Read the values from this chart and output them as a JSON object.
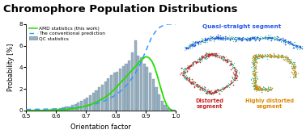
{
  "title": "Chromophore Population Distributions",
  "title_fontsize": 9.5,
  "title_fontweight": "bold",
  "xlabel": "Orientation factor",
  "ylabel": "Probability [%]",
  "xlim": [
    0.5,
    1.0
  ],
  "ylim": [
    0.0,
    8.0
  ],
  "yticks": [
    0.0,
    2.0,
    4.0,
    6.0,
    8.0
  ],
  "xticks": [
    0.5,
    0.6,
    0.7,
    0.8,
    0.9,
    1.0
  ],
  "bar_color": "#9ab0c0",
  "bar_edge_color": "#7090a0",
  "amd_color": "#22dd00",
  "conv_color": "#3399ff",
  "quasi_straight_color": "#2255ee",
  "distorted_color": "#cc2222",
  "highly_distorted_color": "#dd8800",
  "polymer_base_color": "#44bb99",
  "quasi_straight_label": "Quasi-straight segment",
  "distorted_label": "Distorted\nsegment",
  "highly_distorted_label": "Highly distorted\nsegment",
  "legend_amd": "AMD statistics (this work)",
  "legend_conv": "The conventional prediction",
  "legend_qc": "QC statistics",
  "bar_centers": [
    0.505,
    0.515,
    0.525,
    0.535,
    0.545,
    0.555,
    0.565,
    0.575,
    0.585,
    0.595,
    0.605,
    0.615,
    0.625,
    0.635,
    0.645,
    0.655,
    0.665,
    0.675,
    0.685,
    0.695,
    0.705,
    0.715,
    0.725,
    0.735,
    0.745,
    0.755,
    0.765,
    0.775,
    0.785,
    0.795,
    0.805,
    0.815,
    0.825,
    0.835,
    0.845,
    0.855,
    0.865,
    0.875,
    0.885,
    0.895,
    0.905,
    0.915,
    0.925,
    0.935,
    0.945,
    0.955,
    0.965,
    0.975,
    0.985,
    0.995
  ],
  "bar_heights": [
    0.04,
    0.04,
    0.04,
    0.04,
    0.04,
    0.06,
    0.07,
    0.09,
    0.12,
    0.14,
    0.18,
    0.22,
    0.28,
    0.34,
    0.4,
    0.5,
    0.62,
    0.75,
    0.9,
    1.05,
    1.2,
    1.4,
    1.65,
    1.9,
    2.15,
    2.4,
    2.7,
    3.0,
    3.3,
    3.5,
    3.6,
    3.9,
    4.1,
    4.3,
    4.6,
    5.4,
    6.5,
    5.1,
    4.9,
    4.3,
    4.0,
    3.5,
    2.9,
    2.2,
    1.5,
    0.9,
    0.5,
    0.25,
    0.1,
    0.05
  ],
  "amd_x": [
    0.5,
    0.52,
    0.54,
    0.56,
    0.58,
    0.6,
    0.62,
    0.64,
    0.66,
    0.68,
    0.7,
    0.72,
    0.74,
    0.76,
    0.78,
    0.8,
    0.82,
    0.84,
    0.86,
    0.88,
    0.9,
    0.91,
    0.92,
    0.93,
    0.94,
    0.95,
    0.96,
    0.97,
    0.98,
    0.99
  ],
  "amd_y": [
    0.0,
    0.0,
    0.01,
    0.01,
    0.02,
    0.04,
    0.07,
    0.11,
    0.18,
    0.28,
    0.42,
    0.6,
    0.85,
    1.15,
    1.55,
    2.1,
    2.7,
    3.3,
    3.9,
    4.55,
    5.0,
    4.9,
    4.6,
    4.0,
    3.1,
    2.1,
    1.2,
    0.5,
    0.15,
    0.02
  ],
  "conv_x": [
    0.5,
    0.52,
    0.54,
    0.56,
    0.58,
    0.6,
    0.62,
    0.64,
    0.66,
    0.68,
    0.7,
    0.72,
    0.74,
    0.76,
    0.78,
    0.8,
    0.82,
    0.84,
    0.86,
    0.88,
    0.9,
    0.92,
    0.94,
    0.96,
    0.975,
    0.985,
    1.0
  ],
  "conv_y": [
    0.1,
    0.11,
    0.12,
    0.13,
    0.14,
    0.16,
    0.18,
    0.22,
    0.27,
    0.33,
    0.42,
    0.53,
    0.68,
    0.87,
    1.12,
    1.45,
    1.88,
    2.45,
    3.2,
    4.2,
    5.5,
    6.8,
    7.6,
    7.9,
    8.0,
    8.0,
    8.0
  ]
}
